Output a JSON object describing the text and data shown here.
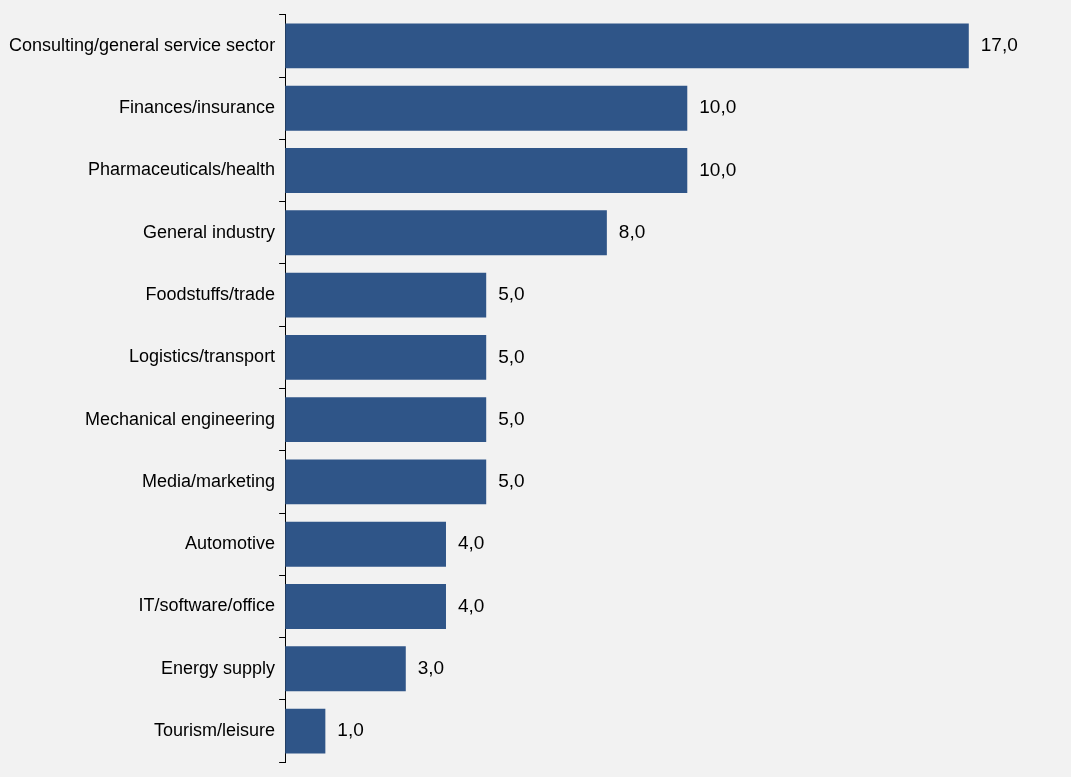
{
  "chart_data": {
    "type": "bar",
    "orientation": "horizontal",
    "categories": [
      "Consulting/general service sector",
      "Finances/insurance",
      "Pharmaceuticals/health",
      "General industry",
      "Foodstuffs/trade",
      "Logistics/transport",
      "Mechanical engineering",
      "Media/marketing",
      "Automotive",
      "IT/software/office",
      "Energy supply",
      "Tourism/leisure"
    ],
    "values": [
      17,
      10,
      10,
      8,
      5,
      5,
      5,
      5,
      4,
      4,
      3,
      1
    ],
    "color": "#2f5588",
    "value_labels": [
      "17,0",
      "10,0",
      "10,0",
      "8,0",
      "5,0",
      "5,0",
      "5,0",
      "5,0",
      "4,0",
      "4,0",
      "3,0",
      "1,0"
    ],
    "legend": false
  }
}
